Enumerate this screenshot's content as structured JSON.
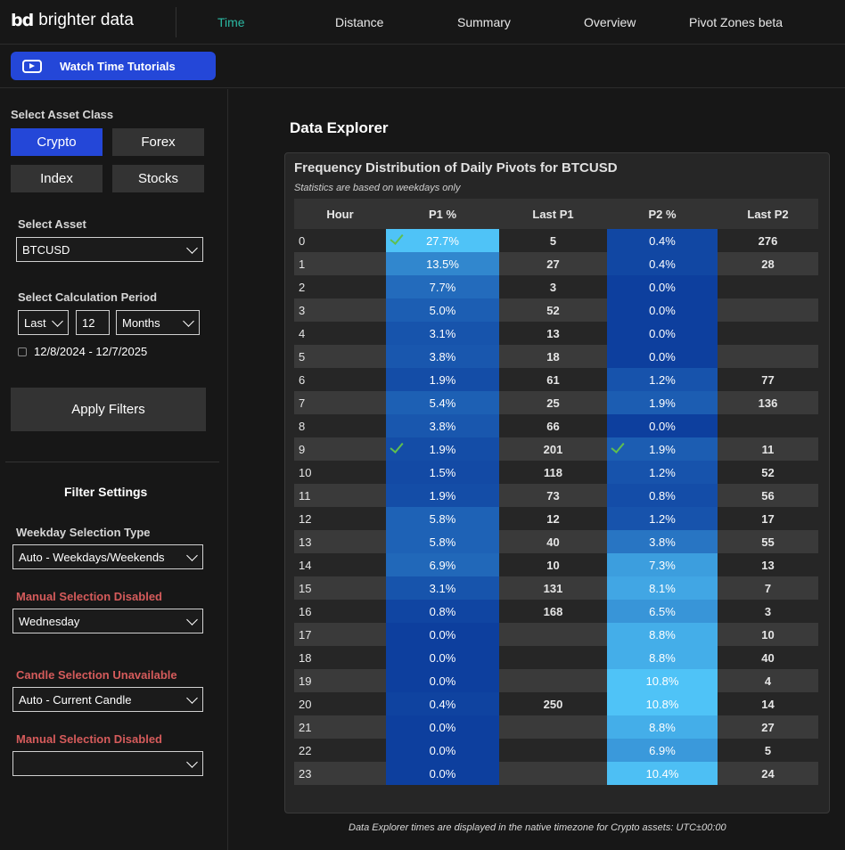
{
  "brand": {
    "logo_mark": "bd",
    "name": "brighter data"
  },
  "nav": [
    {
      "label": "Time",
      "active": true
    },
    {
      "label": "Distance",
      "active": false
    },
    {
      "label": "Summary",
      "active": false
    },
    {
      "label": "Overview",
      "active": false
    },
    {
      "label": "Pivot Zones beta",
      "active": false
    }
  ],
  "tutorials_label": "Watch Time Tutorials",
  "sidebar": {
    "asset_class_label": "Select Asset Class",
    "asset_classes": [
      "Crypto",
      "Forex",
      "Index",
      "Stocks"
    ],
    "asset_label": "Select Asset",
    "asset_value": "BTCUSD",
    "period_label": "Select Calculation Period",
    "period_mode": "Last",
    "period_count": "12",
    "period_unit": "Months",
    "date_range": "12/8/2024 - 12/7/2025",
    "apply_label": "Apply Filters",
    "filter_title": "Filter Settings",
    "weekday_type_label": "Weekday Selection Type",
    "weekday_type_value": "Auto - Weekdays/Weekends",
    "manual_disabled_1": "Manual Selection Disabled",
    "weekday_value": "Wednesday",
    "candle_unavailable": "Candle Selection Unavailable",
    "candle_value": "Auto - Current Candle",
    "manual_disabled_2": "Manual Selection Disabled",
    "manual_value_2": ""
  },
  "main": {
    "title": "Data Explorer",
    "panel_title": "Frequency Distribution of Daily Pivots for BTCUSD",
    "panel_subtitle": "Statistics are based on weekdays only",
    "columns": [
      "Hour",
      "P1 %",
      "Last P1",
      "P2 %",
      "Last P2"
    ],
    "rows": [
      {
        "hour": "0",
        "p1": "27.7%",
        "p1_val": 27.7,
        "last_p1": "5",
        "p2": "0.4%",
        "p2_val": 0.4,
        "last_p2": "276",
        "p1_check": true,
        "p2_check": false
      },
      {
        "hour": "1",
        "p1": "13.5%",
        "p1_val": 13.5,
        "last_p1": "27",
        "p2": "0.4%",
        "p2_val": 0.4,
        "last_p2": "28",
        "p1_check": false,
        "p2_check": false
      },
      {
        "hour": "2",
        "p1": "7.7%",
        "p1_val": 7.7,
        "last_p1": "3",
        "p2": "0.0%",
        "p2_val": 0.0,
        "last_p2": "",
        "p1_check": false,
        "p2_check": false
      },
      {
        "hour": "3",
        "p1": "5.0%",
        "p1_val": 5.0,
        "last_p1": "52",
        "p2": "0.0%",
        "p2_val": 0.0,
        "last_p2": "",
        "p1_check": false,
        "p2_check": false
      },
      {
        "hour": "4",
        "p1": "3.1%",
        "p1_val": 3.1,
        "last_p1": "13",
        "p2": "0.0%",
        "p2_val": 0.0,
        "last_p2": "",
        "p1_check": false,
        "p2_check": false
      },
      {
        "hour": "5",
        "p1": "3.8%",
        "p1_val": 3.8,
        "last_p1": "18",
        "p2": "0.0%",
        "p2_val": 0.0,
        "last_p2": "",
        "p1_check": false,
        "p2_check": false
      },
      {
        "hour": "6",
        "p1": "1.9%",
        "p1_val": 1.9,
        "last_p1": "61",
        "p2": "1.2%",
        "p2_val": 1.2,
        "last_p2": "77",
        "p1_check": false,
        "p2_check": false
      },
      {
        "hour": "7",
        "p1": "5.4%",
        "p1_val": 5.4,
        "last_p1": "25",
        "p2": "1.9%",
        "p2_val": 1.9,
        "last_p2": "136",
        "p1_check": false,
        "p2_check": false
      },
      {
        "hour": "8",
        "p1": "3.8%",
        "p1_val": 3.8,
        "last_p1": "66",
        "p2": "0.0%",
        "p2_val": 0.0,
        "last_p2": "",
        "p1_check": false,
        "p2_check": false
      },
      {
        "hour": "9",
        "p1": "1.9%",
        "p1_val": 1.9,
        "last_p1": "201",
        "p2": "1.9%",
        "p2_val": 1.9,
        "last_p2": "11",
        "p1_check": true,
        "p2_check": true
      },
      {
        "hour": "10",
        "p1": "1.5%",
        "p1_val": 1.5,
        "last_p1": "118",
        "p2": "1.2%",
        "p2_val": 1.2,
        "last_p2": "52",
        "p1_check": false,
        "p2_check": false
      },
      {
        "hour": "11",
        "p1": "1.9%",
        "p1_val": 1.9,
        "last_p1": "73",
        "p2": "0.8%",
        "p2_val": 0.8,
        "last_p2": "56",
        "p1_check": false,
        "p2_check": false
      },
      {
        "hour": "12",
        "p1": "5.8%",
        "p1_val": 5.8,
        "last_p1": "12",
        "p2": "1.2%",
        "p2_val": 1.2,
        "last_p2": "17",
        "p1_check": false,
        "p2_check": false
      },
      {
        "hour": "13",
        "p1": "5.8%",
        "p1_val": 5.8,
        "last_p1": "40",
        "p2": "3.8%",
        "p2_val": 3.8,
        "last_p2": "55",
        "p1_check": false,
        "p2_check": false
      },
      {
        "hour": "14",
        "p1": "6.9%",
        "p1_val": 6.9,
        "last_p1": "10",
        "p2": "7.3%",
        "p2_val": 7.3,
        "last_p2": "13",
        "p1_check": false,
        "p2_check": false
      },
      {
        "hour": "15",
        "p1": "3.1%",
        "p1_val": 3.1,
        "last_p1": "131",
        "p2": "8.1%",
        "p2_val": 8.1,
        "last_p2": "7",
        "p1_check": false,
        "p2_check": false
      },
      {
        "hour": "16",
        "p1": "0.8%",
        "p1_val": 0.8,
        "last_p1": "168",
        "p2": "6.5%",
        "p2_val": 6.5,
        "last_p2": "3",
        "p1_check": false,
        "p2_check": false
      },
      {
        "hour": "17",
        "p1": "0.0%",
        "p1_val": 0.0,
        "last_p1": "",
        "p2": "8.8%",
        "p2_val": 8.8,
        "last_p2": "10",
        "p1_check": false,
        "p2_check": false
      },
      {
        "hour": "18",
        "p1": "0.0%",
        "p1_val": 0.0,
        "last_p1": "",
        "p2": "8.8%",
        "p2_val": 8.8,
        "last_p2": "40",
        "p1_check": false,
        "p2_check": false
      },
      {
        "hour": "19",
        "p1": "0.0%",
        "p1_val": 0.0,
        "last_p1": "",
        "p2": "10.8%",
        "p2_val": 10.8,
        "last_p2": "4",
        "p1_check": false,
        "p2_check": false
      },
      {
        "hour": "20",
        "p1": "0.4%",
        "p1_val": 0.4,
        "last_p1": "250",
        "p2": "10.8%",
        "p2_val": 10.8,
        "last_p2": "14",
        "p1_check": false,
        "p2_check": false
      },
      {
        "hour": "21",
        "p1": "0.0%",
        "p1_val": 0.0,
        "last_p1": "",
        "p2": "8.8%",
        "p2_val": 8.8,
        "last_p2": "27",
        "p1_check": false,
        "p2_check": false
      },
      {
        "hour": "22",
        "p1": "0.0%",
        "p1_val": 0.0,
        "last_p1": "",
        "p2": "6.9%",
        "p2_val": 6.9,
        "last_p2": "5",
        "p1_check": false,
        "p2_check": false
      },
      {
        "hour": "23",
        "p1": "0.0%",
        "p1_val": 0.0,
        "last_p1": "",
        "p2": "10.4%",
        "p2_val": 10.4,
        "last_p2": "24",
        "p1_check": false,
        "p2_check": false
      }
    ],
    "footnote": "Data Explorer times are displayed in the native timezone for Crypto assets: UTC±00:00"
  },
  "colors": {
    "accent_blue": "#2447d8",
    "nav_active": "#2bb9a3",
    "heat_low": "#0d3f9e",
    "heat_high": "#4fc3f7",
    "check": "#5fbf4f",
    "warning_red": "#d55b5b"
  },
  "icons": {
    "tutorials": "youtube-icon",
    "date": "calendar-icon",
    "dropdown": "chevron-down-icon",
    "check": "check-icon"
  }
}
